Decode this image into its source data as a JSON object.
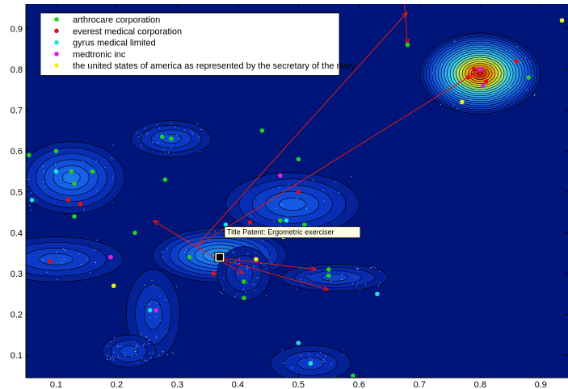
{
  "chart_data": {
    "type": "heatmap",
    "title": "",
    "xlabel": "",
    "ylabel": "",
    "xlim": [
      0.05,
      0.945
    ],
    "ylim": [
      0.045,
      0.96
    ],
    "xticks": [
      "0.1",
      "0.2",
      "0.3",
      "0.4",
      "0.5",
      "0.6",
      "0.7",
      "0.8",
      "0.9"
    ],
    "yticks": [
      "0.1",
      "0.2",
      "0.3",
      "0.4",
      "0.5",
      "0.6",
      "0.7",
      "0.8",
      "0.9"
    ],
    "grid": false,
    "legend_position": "top-left",
    "background_color": "#00157a",
    "series": [
      {
        "name": "arthrocare corporation",
        "color": "#20d020",
        "points": [
          [
            0.055,
            0.59
          ],
          [
            0.1,
            0.6
          ],
          [
            0.125,
            0.55
          ],
          [
            0.13,
            0.52
          ],
          [
            0.13,
            0.44
          ],
          [
            0.16,
            0.55
          ],
          [
            0.23,
            0.4
          ],
          [
            0.275,
            0.635
          ],
          [
            0.28,
            0.53
          ],
          [
            0.29,
            0.63
          ],
          [
            0.32,
            0.34
          ],
          [
            0.41,
            0.24
          ],
          [
            0.41,
            0.28
          ],
          [
            0.44,
            0.65
          ],
          [
            0.47,
            0.43
          ],
          [
            0.5,
            0.58
          ],
          [
            0.51,
            0.42
          ],
          [
            0.55,
            0.295
          ],
          [
            0.55,
            0.31
          ],
          [
            0.59,
            0.05
          ],
          [
            0.68,
            0.86
          ],
          [
            0.88,
            0.78
          ]
        ]
      },
      {
        "name": "everest medical corporation",
        "color": "#e01010",
        "points": [
          [
            0.09,
            0.33
          ],
          [
            0.12,
            0.48
          ],
          [
            0.14,
            0.47
          ],
          [
            0.36,
            0.3
          ],
          [
            0.42,
            0.425
          ],
          [
            0.5,
            0.5
          ],
          [
            0.78,
            0.78
          ],
          [
            0.79,
            0.8
          ],
          [
            0.8,
            0.79
          ],
          [
            0.81,
            0.77
          ],
          [
            0.86,
            0.82
          ]
        ]
      },
      {
        "name": "gyrus medical limited",
        "color": "#20e0e0",
        "points": [
          [
            0.06,
            0.48
          ],
          [
            0.1,
            0.55
          ],
          [
            0.38,
            0.42
          ],
          [
            0.48,
            0.43
          ],
          [
            0.5,
            0.13
          ],
          [
            0.52,
            0.08
          ],
          [
            0.63,
            0.25
          ],
          [
            0.255,
            0.21
          ]
        ]
      },
      {
        "name": "medtronic inc",
        "color": "#e020e0",
        "points": [
          [
            0.19,
            0.34
          ],
          [
            0.265,
            0.21
          ],
          [
            0.47,
            0.54
          ],
          [
            0.8,
            0.8
          ],
          [
            0.805,
            0.76
          ]
        ]
      },
      {
        "name": "the united states of america as represented by the secretary of the navy",
        "color": "#f0f020",
        "points": [
          [
            0.195,
            0.27
          ],
          [
            0.43,
            0.335
          ],
          [
            0.475,
            0.39
          ],
          [
            0.77,
            0.72
          ],
          [
            0.935,
            0.92
          ]
        ]
      }
    ],
    "density_peaks": [
      {
        "x": 0.8,
        "y": 0.79,
        "level": 1.0,
        "sx": 0.045,
        "sy": 0.045
      },
      {
        "x": 0.125,
        "y": 0.535,
        "level": 0.32,
        "sx": 0.04,
        "sy": 0.04
      },
      {
        "x": 0.37,
        "y": 0.345,
        "level": 0.42,
        "sx": 0.05,
        "sy": 0.03
      },
      {
        "x": 0.49,
        "y": 0.47,
        "level": 0.25,
        "sx": 0.05,
        "sy": 0.035
      },
      {
        "x": 0.29,
        "y": 0.63,
        "level": 0.2,
        "sx": 0.03,
        "sy": 0.02
      },
      {
        "x": 0.1,
        "y": 0.335,
        "level": 0.2,
        "sx": 0.05,
        "sy": 0.025
      },
      {
        "x": 0.56,
        "y": 0.29,
        "level": 0.18,
        "sx": 0.04,
        "sy": 0.015
      },
      {
        "x": 0.26,
        "y": 0.2,
        "level": 0.16,
        "sx": 0.02,
        "sy": 0.05
      },
      {
        "x": 0.52,
        "y": 0.08,
        "level": 0.15,
        "sx": 0.03,
        "sy": 0.02
      },
      {
        "x": 0.22,
        "y": 0.11,
        "level": 0.16,
        "sx": 0.02,
        "sy": 0.018
      },
      {
        "x": 0.41,
        "y": 0.3,
        "level": 0.12,
        "sx": 0.02,
        "sy": 0.03
      }
    ],
    "arrows": [
      {
        "from": [
          0.33,
          0.365
        ],
        "to": [
          0.68,
          0.94
        ]
      },
      {
        "from": [
          0.33,
          0.365
        ],
        "to": [
          0.79,
          0.79
        ]
      },
      {
        "from": [
          0.36,
          0.34
        ],
        "to": [
          0.26,
          0.43
        ]
      },
      {
        "from": [
          0.36,
          0.34
        ],
        "to": [
          0.55,
          0.26
        ]
      },
      {
        "from": [
          0.36,
          0.34
        ],
        "to": [
          0.41,
          0.3
        ]
      },
      {
        "from": [
          0.36,
          0.34
        ],
        "to": [
          0.53,
          0.31
        ]
      },
      {
        "from": [
          0.675,
          0.96
        ],
        "to": [
          0.68,
          0.86
        ]
      }
    ],
    "highlight_point": [
      0.37,
      0.34
    ],
    "tooltip_text": "Title Patent: Ergometric exerciser"
  }
}
